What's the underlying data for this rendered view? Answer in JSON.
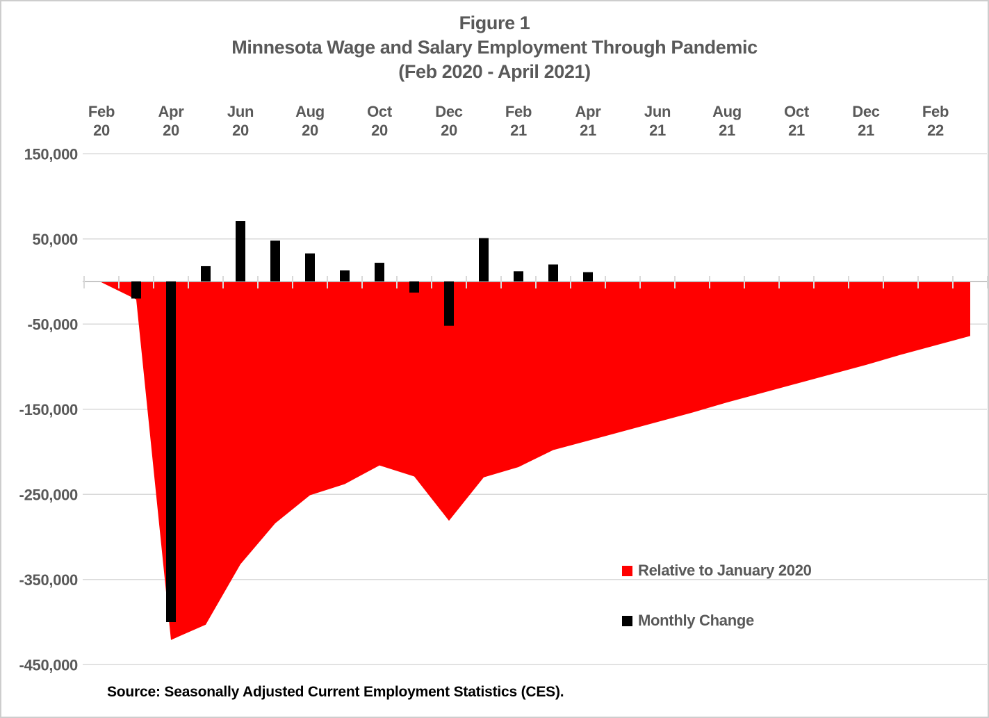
{
  "chart_data": {
    "type": "area+bar combo",
    "title": "Figure 1",
    "subtitle": "Minnesota Wage and Salary Employment Through Pandemic",
    "subtitle2": "(Feb 2020 - April 2021)",
    "source": "Source: Seasonally Adjusted Current Employment Statistics (CES).",
    "categories": [
      "Feb 2020",
      "Mar 2020",
      "Apr 2020",
      "May 2020",
      "Jun 2020",
      "Jul 2020",
      "Aug 2020",
      "Sep 2020",
      "Oct 2020",
      "Nov 2020",
      "Dec 2020",
      "Jan 2021",
      "Feb 2021",
      "Mar 2021",
      "Apr 2021",
      "May 2021",
      "Jun 2021",
      "Jul 2021",
      "Aug 2021",
      "Sep 2021",
      "Oct 2021",
      "Nov 2021",
      "Dec 2021",
      "Jan 2022",
      "Feb 2022",
      "Mar 2022"
    ],
    "series": [
      {
        "name": "Relative to January 2020",
        "type": "area",
        "color": "#FF0000",
        "values": [
          -1000,
          -21000,
          -421000,
          -403000,
          -332000,
          -284000,
          -251000,
          -238000,
          -216000,
          -229000,
          -281000,
          -230000,
          -218000,
          -198000,
          -187000,
          -176000,
          -165000,
          -154000,
          -142000,
          -131000,
          -120000,
          -109000,
          -98000,
          -86000,
          -75000,
          -64000
        ]
      },
      {
        "name": "Monthly Change",
        "type": "bar",
        "color": "#000000",
        "values": [
          null,
          -20000,
          -400000,
          18000,
          71000,
          48000,
          33000,
          13000,
          22000,
          -13000,
          -52000,
          51000,
          12000,
          20000,
          11000,
          null,
          null,
          null,
          null,
          null,
          null,
          null,
          null,
          null,
          null,
          null
        ]
      }
    ],
    "legend": [
      {
        "label": "Relative to January 2020",
        "color": "#FF0000"
      },
      {
        "label": "Monthly Change",
        "color": "#000000"
      }
    ],
    "x_axis": {
      "position": "top",
      "labels": [
        [
          "Feb",
          "20"
        ],
        [
          "Apr",
          "20"
        ],
        [
          "Jun",
          "20"
        ],
        [
          "Aug",
          "20"
        ],
        [
          "Oct",
          "20"
        ],
        [
          "Dec",
          "20"
        ],
        [
          "Feb",
          "21"
        ],
        [
          "Apr",
          "21"
        ],
        [
          "Jun",
          "21"
        ],
        [
          "Aug",
          "21"
        ],
        [
          "Oct",
          "21"
        ],
        [
          "Dec",
          "21"
        ],
        [
          "Feb",
          "22"
        ]
      ]
    },
    "y_axis": {
      "labels": [
        "150,000",
        "50,000",
        "-50,000",
        "-150,000",
        "-250,000",
        "-350,000",
        "-450,000"
      ],
      "values": [
        150000,
        50000,
        -50000,
        -150000,
        -250000,
        -350000,
        -450000
      ]
    },
    "ylim": [
      -450000,
      150000
    ],
    "grid": "horizontal",
    "legend_position": "inside lower right",
    "colors": {
      "text": "#595959",
      "gridline": "#D9D9D9",
      "zero_axis": "#C6C6C6",
      "source_text": "#000000"
    }
  }
}
